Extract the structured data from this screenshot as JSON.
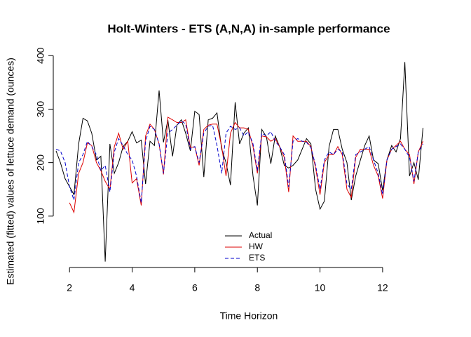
{
  "chart_data": {
    "type": "line",
    "title": "Holt-Winters - ETS (A,N,A) in-sample performance",
    "x_label": "Time Horizon",
    "y_label": "Estimated (fitted) values of lettuce demand (ounces)",
    "x": [
      1.57,
      1.71,
      1.86,
      2,
      2.14,
      2.29,
      2.43,
      2.57,
      2.71,
      2.86,
      3,
      3.14,
      3.29,
      3.43,
      3.57,
      3.71,
      3.86,
      4,
      4.14,
      4.29,
      4.43,
      4.57,
      4.71,
      4.86,
      5,
      5.14,
      5.29,
      5.43,
      5.57,
      5.71,
      5.86,
      6,
      6.14,
      6.29,
      6.43,
      6.57,
      6.71,
      6.86,
      7,
      7.14,
      7.29,
      7.43,
      7.57,
      7.71,
      7.86,
      8,
      8.14,
      8.29,
      8.43,
      8.57,
      8.71,
      8.86,
      9,
      9.14,
      9.29,
      9.43,
      9.57,
      9.71,
      9.86,
      10,
      10.14,
      10.29,
      10.43,
      10.57,
      10.71,
      10.86,
      11,
      11.14,
      11.29,
      11.43,
      11.57,
      11.71,
      11.86,
      12,
      12.14,
      12.29,
      12.43,
      12.57,
      12.71,
      12.86,
      13,
      13.14,
      13.29
    ],
    "series": [
      {
        "name": "Actual",
        "color": "#000000",
        "dash": "solid",
        "values": [
          222,
          200,
          170,
          155,
          140,
          235,
          283,
          278,
          255,
          205,
          212,
          15,
          235,
          180,
          200,
          230,
          240,
          258,
          237,
          242,
          160,
          240,
          232,
          335,
          238,
          280,
          212,
          270,
          280,
          255,
          222,
          296,
          290,
          173,
          280,
          283,
          293,
          225,
          200,
          158,
          313,
          235,
          255,
          265,
          175,
          120,
          262,
          248,
          198,
          250,
          230,
          195,
          190,
          195,
          205,
          225,
          245,
          235,
          150,
          113,
          128,
          230,
          262,
          262,
          225,
          200,
          130,
          175,
          205,
          232,
          250,
          205,
          198,
          148,
          205,
          232,
          220,
          245,
          388,
          175,
          200,
          168,
          265
        ]
      },
      {
        "name": "HW",
        "color": "#dd0000",
        "dash": "solid",
        "values": [
          null,
          null,
          null,
          125,
          107,
          180,
          200,
          237,
          232,
          200,
          185,
          165,
          150,
          230,
          255,
          225,
          240,
          162,
          170,
          120,
          250,
          272,
          262,
          235,
          178,
          285,
          280,
          275,
          275,
          280,
          228,
          230,
          195,
          262,
          270,
          272,
          272,
          230,
          175,
          255,
          275,
          265,
          265,
          262,
          230,
          180,
          250,
          248,
          240,
          245,
          230,
          210,
          145,
          250,
          240,
          240,
          240,
          230,
          190,
          140,
          200,
          215,
          215,
          230,
          215,
          150,
          135,
          210,
          225,
          225,
          225,
          195,
          175,
          133,
          205,
          225,
          232,
          240,
          225,
          215,
          160,
          220,
          240
        ]
      },
      {
        "name": "ETS",
        "color": "#0000cc",
        "dash": "dashed",
        "values": [
          225,
          222,
          200,
          155,
          130,
          200,
          215,
          240,
          230,
          215,
          185,
          195,
          145,
          220,
          245,
          232,
          215,
          205,
          175,
          125,
          240,
          268,
          262,
          235,
          180,
          255,
          262,
          270,
          278,
          272,
          225,
          230,
          200,
          255,
          268,
          270,
          232,
          180,
          255,
          268,
          262,
          265,
          250,
          258,
          235,
          185,
          255,
          250,
          258,
          240,
          230,
          215,
          155,
          240,
          245,
          240,
          238,
          228,
          195,
          150,
          205,
          220,
          215,
          225,
          220,
          160,
          150,
          215,
          220,
          225,
          230,
          205,
          180,
          140,
          205,
          225,
          230,
          235,
          225,
          210,
          165,
          220,
          235
        ]
      }
    ],
    "xlim": [
      1.1,
      13.95
    ],
    "xticks": [
      2,
      4,
      6,
      8,
      10,
      12
    ],
    "ylim": [
      0,
      403
    ],
    "yticks": [
      100,
      200,
      300,
      400
    ],
    "legend": "bottom"
  }
}
